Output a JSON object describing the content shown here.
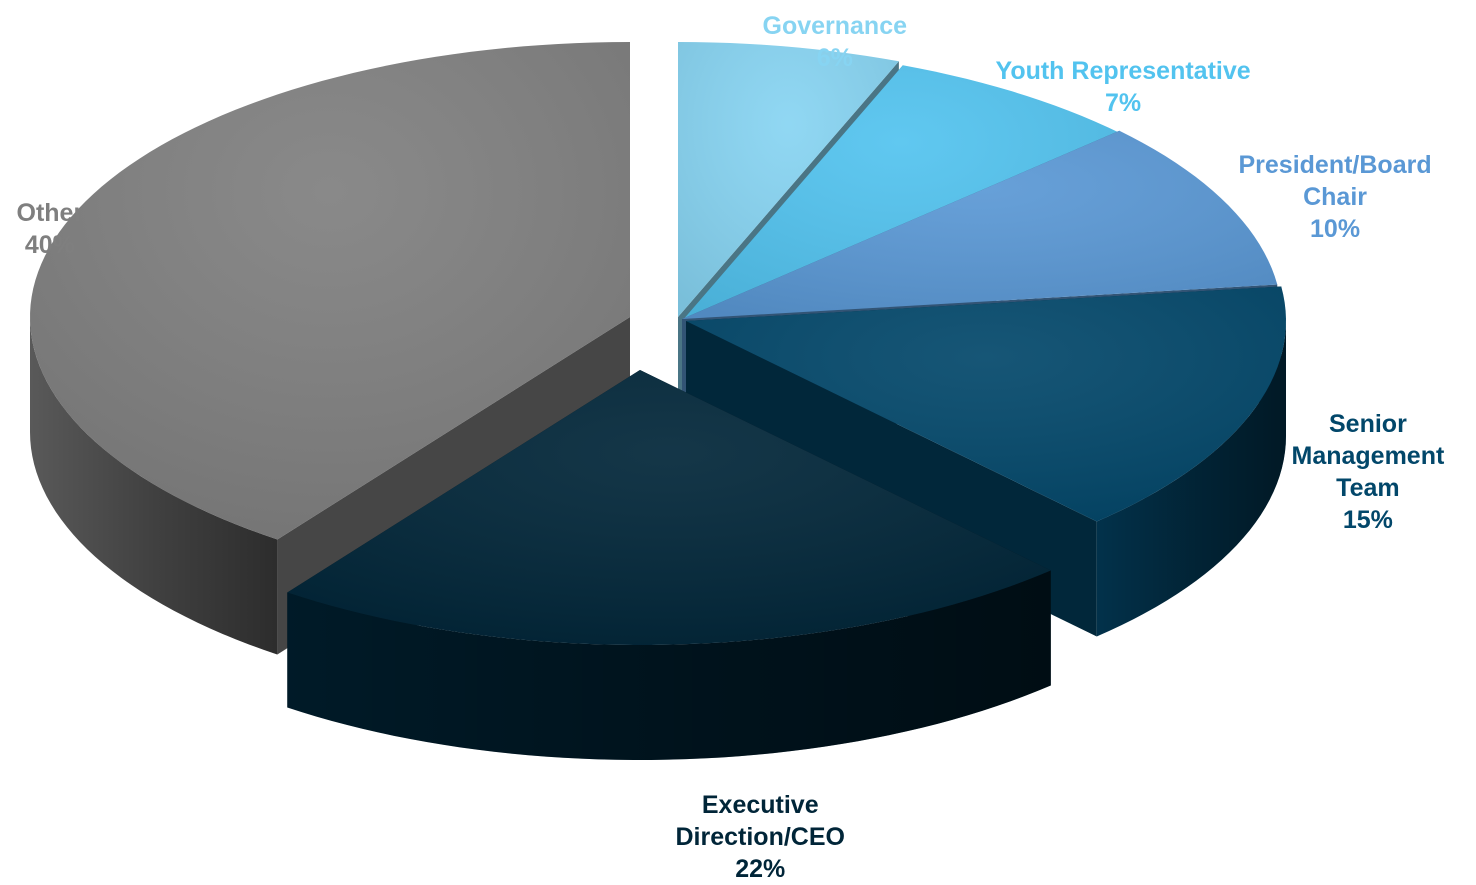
{
  "chart_data": {
    "type": "pie",
    "style": "3d-exploded",
    "title": "",
    "legend": "none",
    "slices": [
      {
        "label": "Governance",
        "display_label": [
          "Governance"
        ],
        "value": 6,
        "pct_label": "6%",
        "color": "#87d4f2",
        "label_color": "#87d4f2"
      },
      {
        "label": "Youth Representative",
        "display_label": [
          "Youth Representative"
        ],
        "value": 7,
        "pct_label": "7%",
        "color": "#52c3ef",
        "label_color": "#52c3ef"
      },
      {
        "label": "President/Board Chair",
        "display_label": [
          "President/Board",
          "Chair"
        ],
        "value": 10,
        "pct_label": "10%",
        "color": "#5a98d5",
        "label_color": "#5a98d5"
      },
      {
        "label": "Senior Management Team",
        "display_label": [
          "Senior",
          "Management",
          "Team"
        ],
        "value": 15,
        "pct_label": "15%",
        "color": "#02476a",
        "label_color": "#02476a"
      },
      {
        "label": "Executive Direction/CEO",
        "display_label": [
          "Executive",
          "Direction/CEO"
        ],
        "value": 22,
        "pct_label": "22%",
        "color": "#002538",
        "label_color": "#002538"
      },
      {
        "label": "Other",
        "display_label": [
          "Other"
        ],
        "value": 40,
        "pct_label": "40%",
        "color": "#7f7f7f",
        "label_color": "#7f7f7f"
      }
    ]
  }
}
